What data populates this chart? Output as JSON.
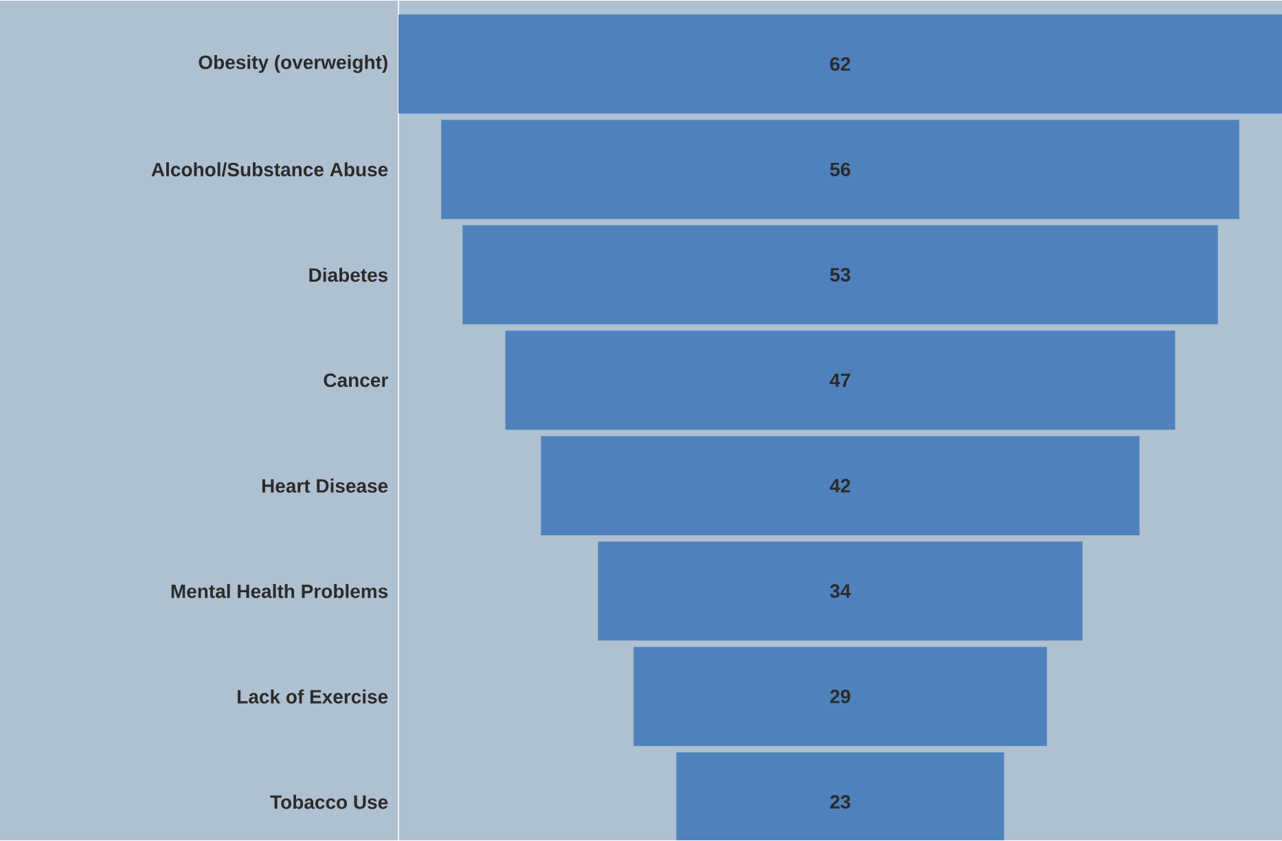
{
  "chart_data": {
    "type": "other",
    "categories": [
      "Obesity (overweight)",
      "Alcohol/Substance Abuse",
      "Diabetes",
      "Cancer",
      "Heart Disease",
      "Mental Health Problems",
      "Lack of Exercise",
      "Tobacco Use"
    ],
    "values": [
      62,
      56,
      53,
      47,
      42,
      34,
      29,
      23
    ],
    "color": "#4f81bd",
    "data_labels": true
  }
}
